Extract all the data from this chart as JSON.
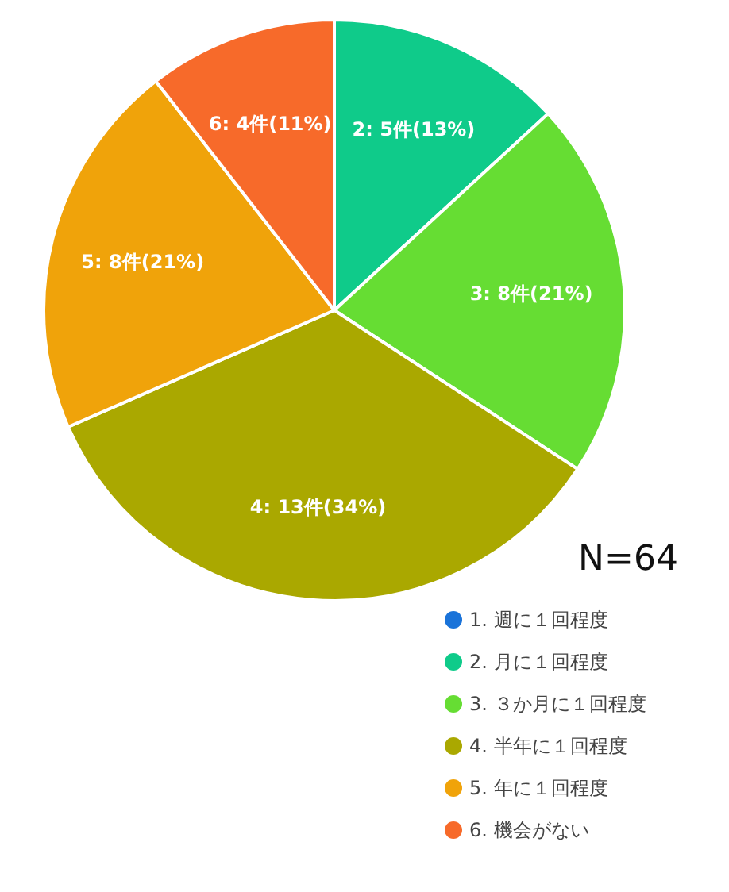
{
  "chart_data": {
    "type": "pie",
    "categories": [
      "1. 週に１回程度",
      "2. 月に１回程度",
      "3. ３か月に１回程度",
      "4. 半年に１回程度",
      "5. 年に１回程度",
      "6. 機会がない"
    ],
    "values": [
      0,
      5,
      8,
      13,
      8,
      4
    ],
    "colors": [
      "#1a73d9",
      "#0fcb8a",
      "#66dd33",
      "#aaa800",
      "#f0a30a",
      "#f76a2a"
    ],
    "value_labels": [
      null,
      "2: 5件(13%)",
      "3: 8件(21%)",
      "4: 13件(34%)",
      "5: 8件(21%)",
      "6: 4件(11%)"
    ],
    "annotations": [
      "N=64"
    ],
    "legend": "bottom right"
  }
}
